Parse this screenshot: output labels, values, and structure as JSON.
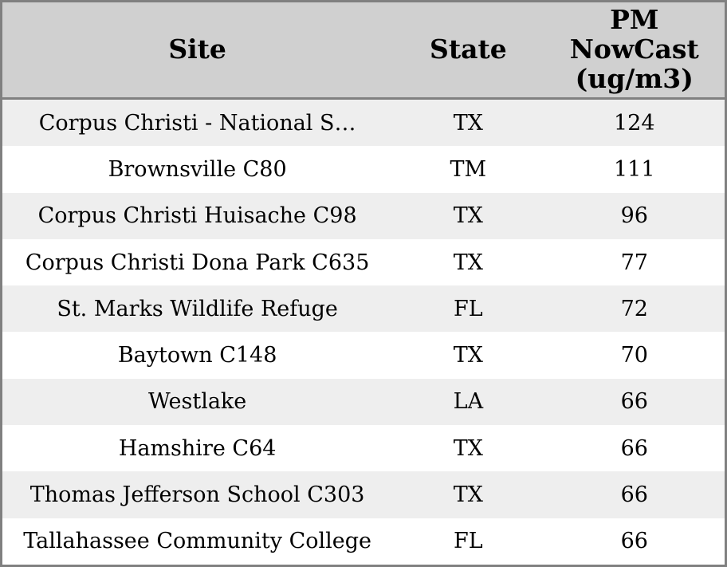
{
  "colors": {
    "border": "#808080",
    "header_bg": "#d0d0d0",
    "row_stripe": "#eeeeee",
    "row_plain": "#ffffff",
    "text": "#000000"
  },
  "chart_data": {
    "type": "table",
    "columns": [
      {
        "key": "site",
        "label": "Site"
      },
      {
        "key": "state",
        "label": "State"
      },
      {
        "key": "pm",
        "label": "PM\nNowCast\n(ug/m3)"
      }
    ],
    "rows": [
      {
        "site": "Corpus Christi - National S…",
        "state": "TX",
        "pm": 124
      },
      {
        "site": "Brownsville C80",
        "state": "TM",
        "pm": 111
      },
      {
        "site": "Corpus Christi Huisache C98",
        "state": "TX",
        "pm": 96
      },
      {
        "site": "Corpus Christi Dona Park C635",
        "state": "TX",
        "pm": 77
      },
      {
        "site": "St. Marks Wildlife Refuge",
        "state": "FL",
        "pm": 72
      },
      {
        "site": "Baytown C148",
        "state": "TX",
        "pm": 70
      },
      {
        "site": "Westlake",
        "state": "LA",
        "pm": 66
      },
      {
        "site": "Hamshire C64",
        "state": "TX",
        "pm": 66
      },
      {
        "site": "Thomas Jefferson School C303",
        "state": "TX",
        "pm": 66
      },
      {
        "site": "Tallahassee Community College",
        "state": "FL",
        "pm": 66
      }
    ]
  }
}
